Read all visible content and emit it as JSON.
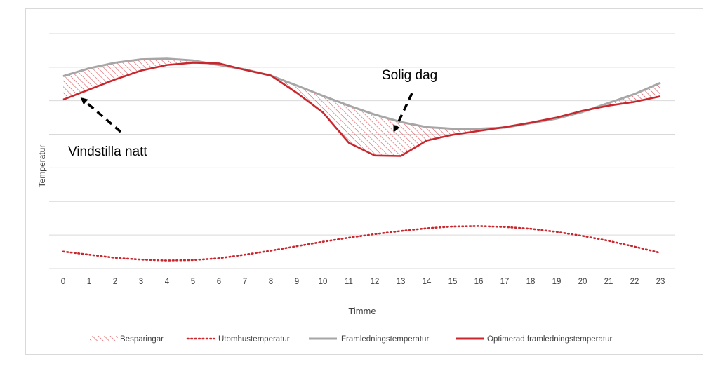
{
  "chart_data": {
    "type": "line",
    "title": "",
    "xlabel": "Timme",
    "ylabel": "Temperatur",
    "x": [
      0,
      1,
      2,
      3,
      4,
      5,
      6,
      7,
      8,
      9,
      10,
      11,
      12,
      13,
      14,
      15,
      16,
      17,
      18,
      19,
      20,
      21,
      22,
      23
    ],
    "ylim": [
      0,
      11
    ],
    "grid": true,
    "y_ticks_labeled": false,
    "legend_position": "bottom",
    "series": [
      {
        "name": "Besparingar",
        "style": "hatched-area",
        "color": "#c9272e"
      },
      {
        "name": "Utomhustemperatur",
        "style": "dotted",
        "color": "#c9272e",
        "values": [
          0.76,
          0.62,
          0.48,
          0.4,
          0.36,
          0.38,
          0.46,
          0.62,
          0.8,
          1.0,
          1.2,
          1.38,
          1.54,
          1.68,
          1.8,
          1.88,
          1.9,
          1.86,
          1.78,
          1.64,
          1.46,
          1.24,
          0.98,
          0.7
        ]
      },
      {
        "name": "Framledningstemperatur",
        "style": "solid",
        "color": "#a6a6a6",
        "values": [
          8.6,
          8.95,
          9.2,
          9.35,
          9.38,
          9.3,
          9.1,
          8.9,
          8.62,
          8.18,
          7.72,
          7.28,
          6.88,
          6.55,
          6.32,
          6.25,
          6.25,
          6.3,
          6.5,
          6.7,
          7.0,
          7.4,
          7.8,
          8.3
        ]
      },
      {
        "name": "Optimerad framledningstemperatur",
        "style": "solid",
        "color": "#c9272e",
        "values": [
          7.55,
          8.0,
          8.45,
          8.85,
          9.1,
          9.2,
          9.17,
          8.88,
          8.63,
          7.85,
          6.98,
          5.62,
          5.05,
          5.03,
          5.72,
          5.98,
          6.15,
          6.32,
          6.52,
          6.75,
          7.05,
          7.28,
          7.45,
          7.7
        ]
      }
    ],
    "annotations": [
      {
        "text": "Vindstilla natt",
        "arrow_to_x": 0.75,
        "arrow_to_y": 7.95
      },
      {
        "text": "Solig dag",
        "arrow_to_x": 12.75,
        "arrow_to_y": 6.52
      }
    ]
  }
}
